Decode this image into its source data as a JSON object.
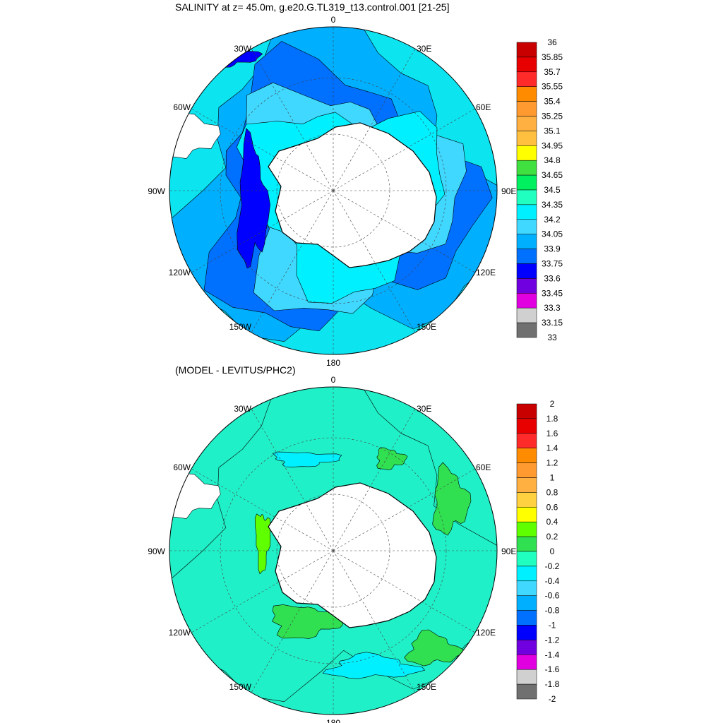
{
  "figure": {
    "top_title": "SALINITY at z=  45.0m, g.e20.G.TL319_t13.control.001 [21-25]",
    "bottom_title": "(MODEL - LEVITUS/PHC2)"
  },
  "longitude_labels": {
    "top": "0",
    "bottom": "180",
    "right": "90E",
    "left": "90W",
    "upper_right": "30E",
    "right_upper": "60E",
    "right_lower": "120E",
    "lower_right": "150E",
    "upper_left": "30W",
    "left_upper": "60W",
    "left_lower": "120W",
    "lower_left": "150W"
  },
  "chart_data": [
    {
      "type": "heatmap",
      "projection": "south-polar stereographic",
      "title": "SALINITY at z=  45.0m, g.e20.G.TL319_t13.control.001 [21-25]",
      "colorbar": {
        "levels": [
          "36",
          "35.85",
          "35.7",
          "35.55",
          "35.4",
          "35.25",
          "35.1",
          "34.95",
          "34.8",
          "34.65",
          "34.5",
          "34.35",
          "34.2",
          "34.05",
          "33.9",
          "33.75",
          "33.6",
          "33.45",
          "33.3",
          "33.15",
          "33"
        ],
        "colors": [
          "#c80000",
          "#e80000",
          "#ff2a2a",
          "#ff8c00",
          "#ff9a30",
          "#ffb040",
          "#ffc040",
          "#ffff00",
          "#40e040",
          "#00f060",
          "#20ffc0",
          "#00f0ff",
          "#40d8ff",
          "#00b0ff",
          "#0070ff",
          "#0000ff",
          "#7000e0",
          "#e000e0",
          "#d0d0d0",
          "#707070"
        ]
      },
      "background_color": "#0ce4f0",
      "grid": "dashed graticule"
    },
    {
      "type": "heatmap",
      "projection": "south-polar stereographic",
      "title": "(MODEL - LEVITUS/PHC2)",
      "colorbar": {
        "levels": [
          "2",
          "1.8",
          "1.6",
          "1.4",
          "1.2",
          "1",
          "0.8",
          "0.6",
          "0.4",
          "0.2",
          "0",
          "-0.2",
          "-0.4",
          "-0.6",
          "-0.8",
          "-1",
          "-1.2",
          "-1.4",
          "-1.6",
          "-1.8",
          "-2"
        ],
        "colors": [
          "#c80000",
          "#e80000",
          "#ff2a2a",
          "#ff8c00",
          "#ff9a30",
          "#ffb040",
          "#ffd040",
          "#ffff00",
          "#60ff00",
          "#30e050",
          "#20ffc0",
          "#00f0ff",
          "#40d8ff",
          "#00b0ff",
          "#0070ff",
          "#0000ff",
          "#7000e0",
          "#e000e0",
          "#d0d0d0",
          "#707070"
        ]
      },
      "background_color": "#20f0c8",
      "grid": "dashed graticule"
    }
  ]
}
